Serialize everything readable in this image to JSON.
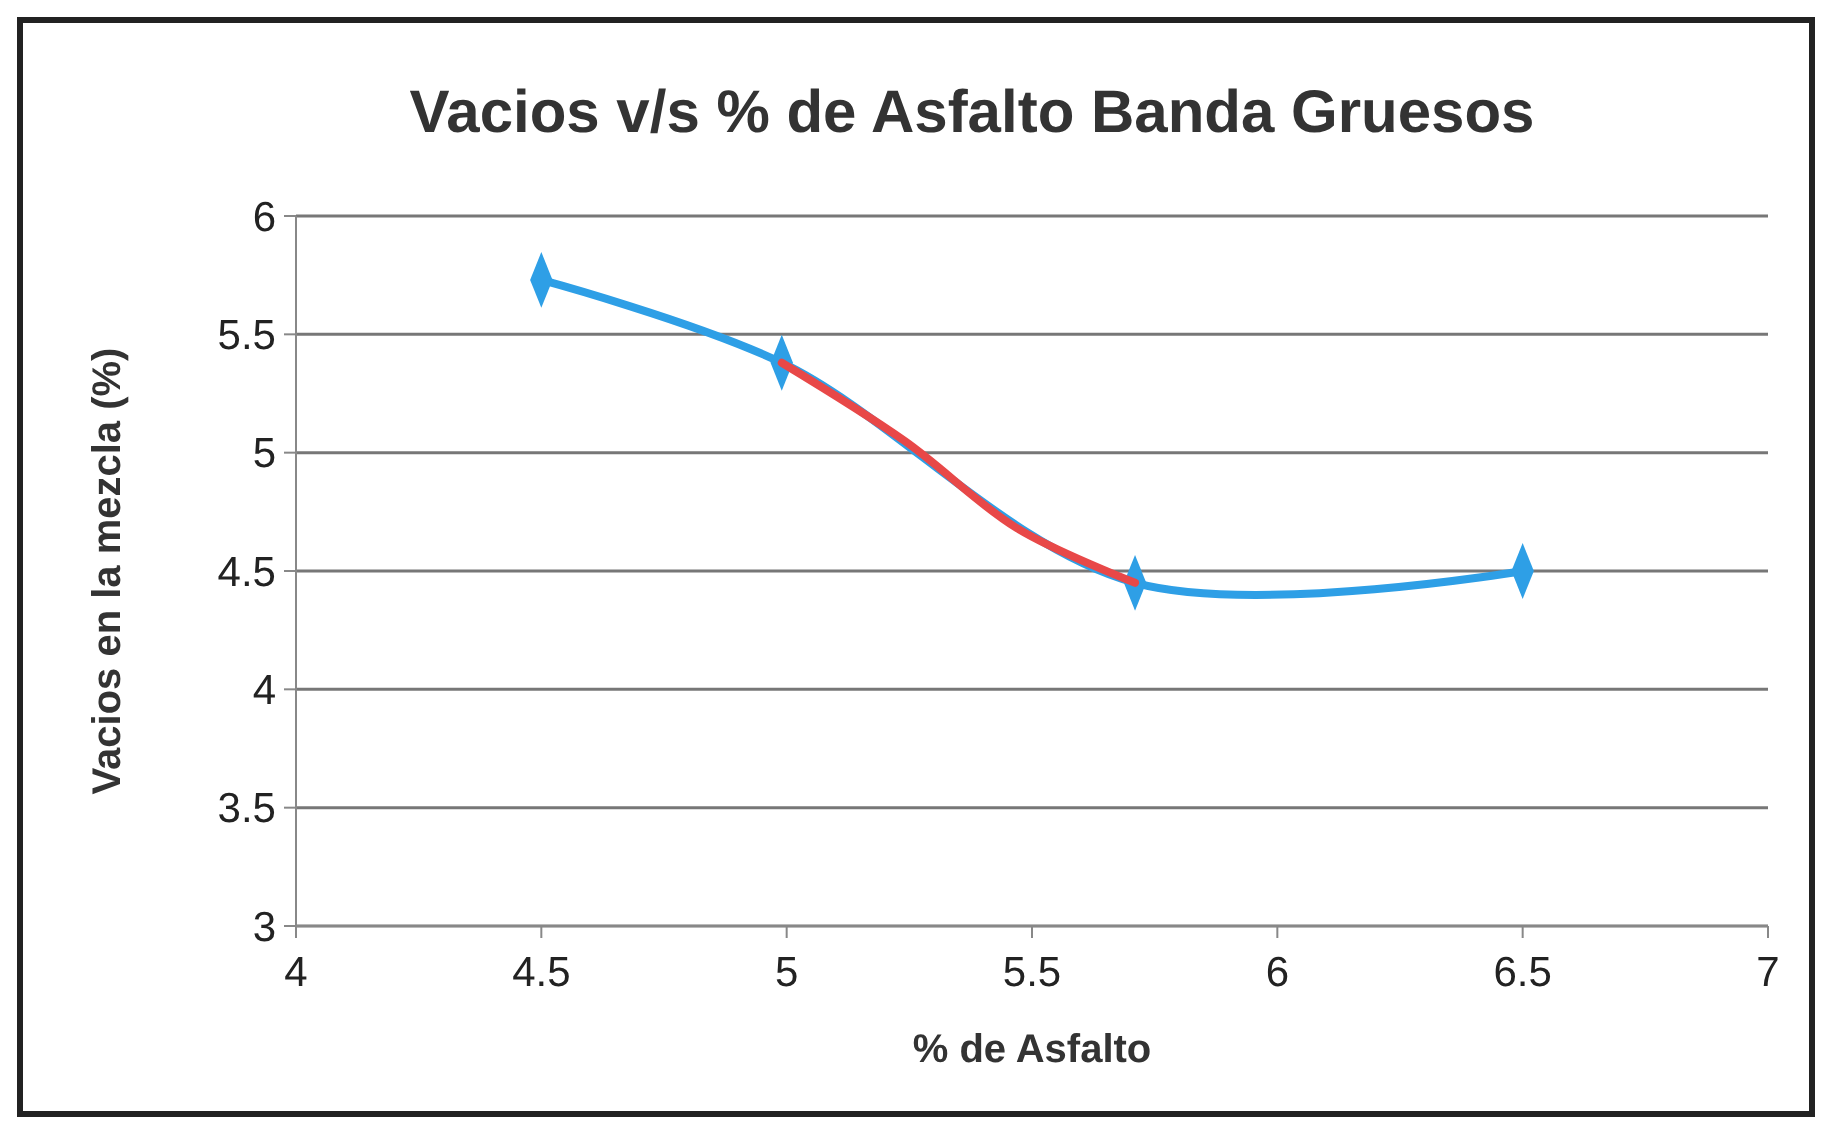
{
  "chart_data": {
    "type": "line",
    "title": "Vacios v/s % de Asfalto Banda Gruesos",
    "xlabel": "% de Asfalto",
    "ylabel": "Vacios en la mezcla (%)",
    "xlim": [
      4,
      7
    ],
    "xticks": [
      4,
      4.5,
      5,
      5.5,
      6,
      6.5,
      7
    ],
    "ylim": [
      3,
      6
    ],
    "yticks": [
      3,
      3.5,
      4,
      4.5,
      5,
      5.5,
      6
    ],
    "grid": "y",
    "marker": "diamond",
    "series": [
      {
        "color": "#2e9fe6",
        "x": [
          4.5,
          4.99,
          5.71,
          6.5
        ],
        "values": [
          5.73,
          5.38,
          4.45,
          4.5
        ]
      },
      {
        "color": "#e84848",
        "marker": "none",
        "x": [
          4.99,
          5.24,
          5.47,
          5.71
        ],
        "values": [
          5.38,
          5.05,
          4.68,
          4.45
        ]
      }
    ]
  }
}
